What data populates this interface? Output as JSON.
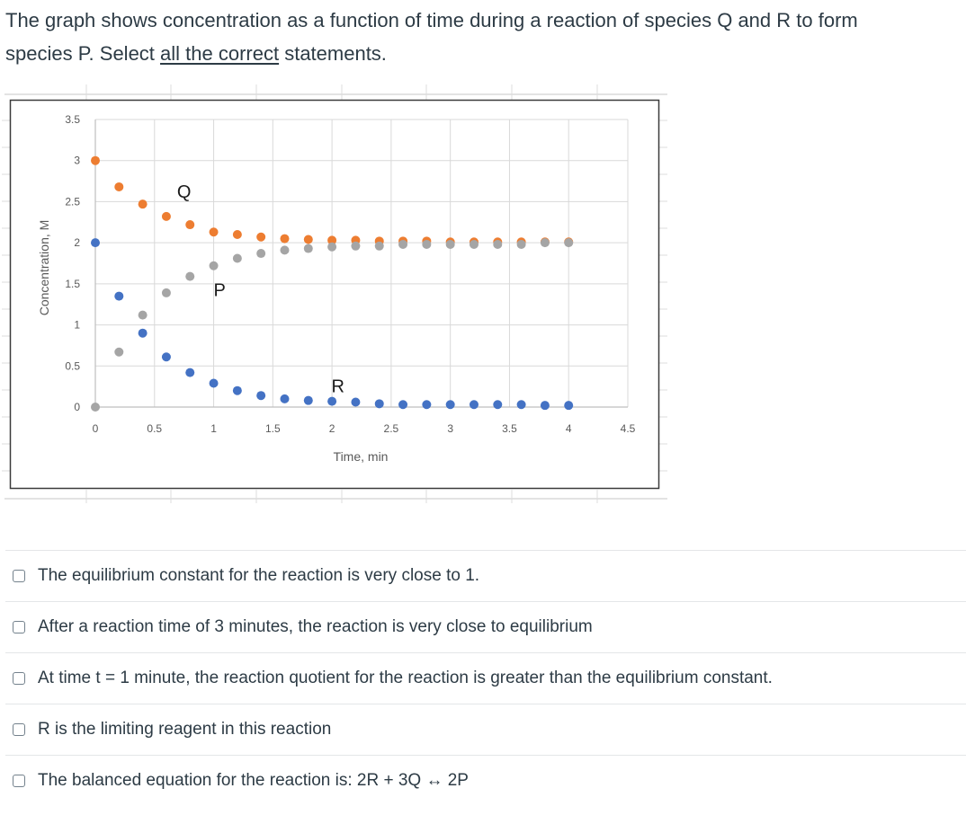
{
  "prompt": {
    "line1": "The graph shows concentration as a function of time during a reaction of species Q and R to form",
    "line2_prefix": "species P. Select ",
    "line2_underlined": "all the correct",
    "line2_suffix": " statements."
  },
  "chart_data": {
    "type": "scatter",
    "title": "",
    "xlabel": "Time, min",
    "ylabel": "Concentration, M",
    "xlim": [
      0,
      4.5
    ],
    "ylim": [
      0,
      3.5
    ],
    "x_ticks": [
      "0",
      "0.5",
      "1",
      "1.5",
      "2",
      "2.5",
      "3",
      "3.5",
      "4",
      "4.5"
    ],
    "y_ticks": [
      "0",
      "0.5",
      "1",
      "1.5",
      "2",
      "2.5",
      "3",
      "3.5"
    ],
    "grid": true,
    "legend": "none (series labeled inline)",
    "x": [
      0,
      0.2,
      0.4,
      0.6,
      0.8,
      1.0,
      1.2,
      1.4,
      1.6,
      1.8,
      2.0,
      2.2,
      2.4,
      2.6,
      2.8,
      3.0,
      3.2,
      3.4,
      3.6,
      3.8,
      4.0
    ],
    "series": [
      {
        "name": "Q",
        "color": "#ed7d31",
        "values": [
          3.0,
          2.68,
          2.47,
          2.32,
          2.22,
          2.13,
          2.1,
          2.07,
          2.05,
          2.04,
          2.03,
          2.03,
          2.02,
          2.02,
          2.02,
          2.01,
          2.01,
          2.01,
          2.01,
          2.01,
          2.01
        ]
      },
      {
        "name": "R",
        "color": "#4472c4",
        "values": [
          2.0,
          1.35,
          0.9,
          0.61,
          0.42,
          0.29,
          0.2,
          0.14,
          0.1,
          0.08,
          0.07,
          0.06,
          0.04,
          0.03,
          0.03,
          0.03,
          0.03,
          0.03,
          0.03,
          0.02,
          0.02
        ]
      },
      {
        "name": "P",
        "color": "#a5a5a5",
        "values": [
          0.0,
          0.67,
          1.12,
          1.39,
          1.59,
          1.72,
          1.81,
          1.87,
          1.91,
          1.93,
          1.95,
          1.96,
          1.96,
          1.98,
          1.98,
          1.98,
          1.98,
          1.98,
          1.98,
          2.0,
          2.0
        ]
      }
    ],
    "annotations": [
      {
        "text": "Q",
        "x": 0.75,
        "y": 2.55
      },
      {
        "text": "P",
        "x": 1.05,
        "y": 1.35
      },
      {
        "text": "R",
        "x": 2.05,
        "y": 0.18
      }
    ]
  },
  "answers": [
    {
      "label": "The equilibrium constant for the reaction is very close to 1.",
      "checked": false
    },
    {
      "label": "After a reaction time of 3 minutes, the reaction is very close to equilibrium",
      "checked": false
    },
    {
      "label": "At time t = 1 minute, the reaction quotient for the reaction is greater than the equilibrium constant.",
      "checked": false
    },
    {
      "label": "R is the limiting reagent in this reaction",
      "checked": false
    },
    {
      "label": "The balanced equation for the reaction is: 2R + 3Q ↔ 2P",
      "checked": false
    }
  ]
}
